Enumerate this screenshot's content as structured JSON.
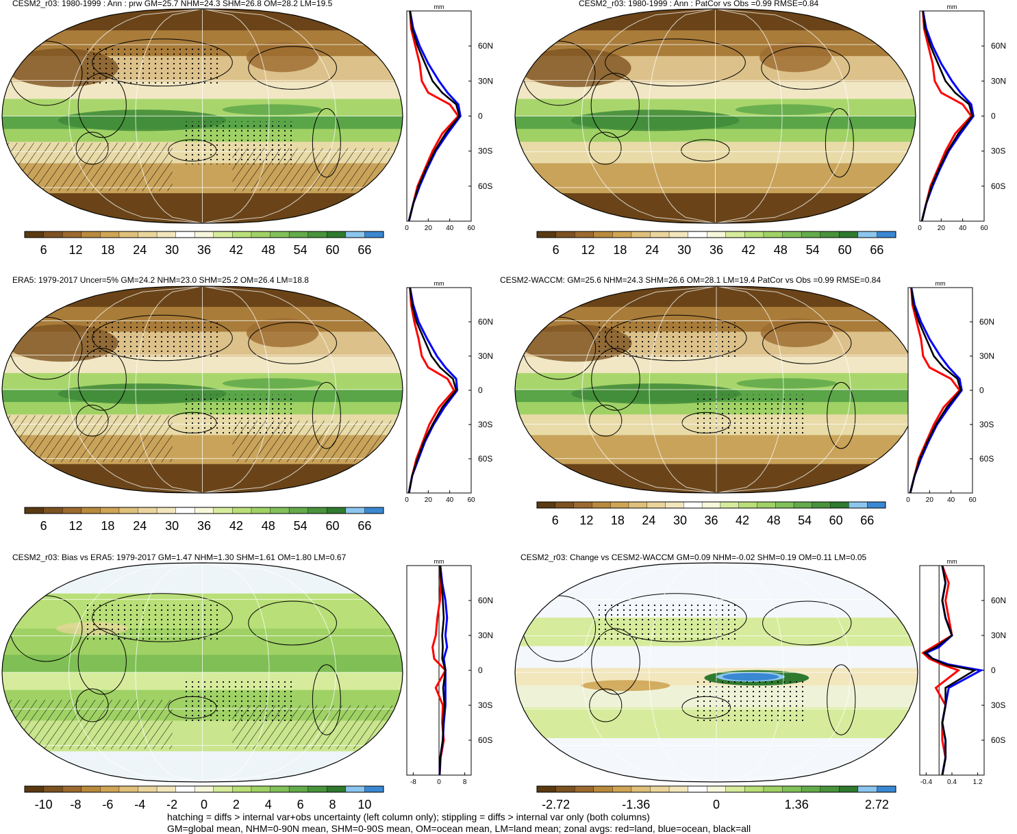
{
  "panels": [
    {
      "title": "CESM2_r03: 1980-1999 : Ann : prw GM=25.7 NHM=24.3 SHM=26.8 OM=28.2 LM=19.5",
      "zonal_unit": "mm",
      "map_style": "abs",
      "marks": [
        "stipple",
        "hatch"
      ]
    },
    {
      "title": "CESM2_r03: 1980-1999 : Ann : PatCor vs Obs =0.99 RMSE=0.84",
      "zonal_unit": "mm",
      "map_style": "abs",
      "marks": []
    },
    {
      "title": "ERA5: 1979-2017 Uncer=5% GM=24.2 NHM=23.0 SHM=25.2 OM=26.4 LM=18.8",
      "zonal_unit": "mm",
      "map_style": "abs",
      "marks": [
        "stipple",
        "hatch"
      ]
    },
    {
      "title": "CESM2-WACCM: GM=25.6 NHM=24.3 SHM=26.6 OM=28.1 LM=19.4 PatCor vs Obs =0.99 RMSE=0.84",
      "zonal_unit": "mm",
      "map_style": "abs",
      "marks": [
        "stipple"
      ]
    },
    {
      "title": "CESM2_r03: Bias vs ERA5: 1979-2017 GM=1.47 NHM=1.30 SHM=1.61 OM=1.80 LM=0.67",
      "zonal_unit": "mm",
      "map_style": "bias",
      "marks": [
        "stipple",
        "hatch"
      ]
    },
    {
      "title": "CESM2_r03: Change vs CESM2-WACCM GM=0.09 NHM=-0.02 SHM=0.19 OM=0.11 LM=0.05",
      "zonal_unit": "mm",
      "map_style": "change",
      "marks": [
        "stipple"
      ]
    }
  ],
  "colorbars": [
    {
      "colors": [
        "#5a3a12",
        "#7d5221",
        "#9c6a30",
        "#b98a3d",
        "#cfa555",
        "#dfc07a",
        "#ead59c",
        "#f2e6bd",
        "#ffffff",
        "#f7f7dc",
        "#d6ec9c",
        "#b9df78",
        "#9fd165",
        "#82c15a",
        "#64ab4b",
        "#49933c",
        "#2f7a2f",
        "#8cc6ee",
        "#3a88d2"
      ],
      "labels": [
        "6",
        "12",
        "18",
        "24",
        "30",
        "36",
        "42",
        "48",
        "54",
        "60",
        "66"
      ]
    },
    {
      "colors": [
        "#5a3a12",
        "#7d5221",
        "#9c6a30",
        "#b98a3d",
        "#cfa555",
        "#dfc07a",
        "#ead59c",
        "#f2e6bd",
        "#ffffff",
        "#f7f7dc",
        "#d6ec9c",
        "#b9df78",
        "#9fd165",
        "#82c15a",
        "#64ab4b",
        "#49933c",
        "#2f7a2f",
        "#8cc6ee",
        "#3a88d2"
      ],
      "labels": [
        "6",
        "12",
        "18",
        "24",
        "30",
        "36",
        "42",
        "48",
        "54",
        "60",
        "66"
      ]
    },
    {
      "colors": [
        "#5a3a12",
        "#7d5221",
        "#9c6a30",
        "#b98a3d",
        "#cfa555",
        "#dfc07a",
        "#ead59c",
        "#f2e6bd",
        "#ffffff",
        "#f7f7dc",
        "#d6ec9c",
        "#b9df78",
        "#9fd165",
        "#82c15a",
        "#64ab4b",
        "#49933c",
        "#2f7a2f",
        "#8cc6ee",
        "#3a88d2"
      ],
      "labels": [
        "6",
        "12",
        "18",
        "24",
        "30",
        "36",
        "42",
        "48",
        "54",
        "60",
        "66"
      ]
    },
    {
      "colors": [
        "#5a3a12",
        "#7d5221",
        "#9c6a30",
        "#b98a3d",
        "#cfa555",
        "#dfc07a",
        "#ead59c",
        "#f2e6bd",
        "#ffffff",
        "#f7f7dc",
        "#d6ec9c",
        "#b9df78",
        "#9fd165",
        "#82c15a",
        "#64ab4b",
        "#49933c",
        "#2f7a2f",
        "#8cc6ee",
        "#3a88d2"
      ],
      "labels": [
        "6",
        "12",
        "18",
        "24",
        "30",
        "36",
        "42",
        "48",
        "54",
        "60",
        "66"
      ]
    },
    {
      "colors": [
        "#5a3a12",
        "#7d5221",
        "#9c6a30",
        "#b98a3d",
        "#cfa555",
        "#dfc07a",
        "#ead59c",
        "#f2e6bd",
        "#ffffff",
        "#f7f7dc",
        "#d6ec9c",
        "#b9df78",
        "#9fd165",
        "#82c15a",
        "#64ab4b",
        "#49933c",
        "#2f7a2f",
        "#8cc6ee",
        "#3a88d2"
      ],
      "labels": [
        "-10",
        "-8",
        "-6",
        "-4",
        "-2",
        "0",
        "2",
        "4",
        "6",
        "8",
        "10"
      ]
    },
    {
      "colors": [
        "#5a3a12",
        "#7d5221",
        "#9c6a30",
        "#b98a3d",
        "#cfa555",
        "#dfc07a",
        "#ead59c",
        "#f2e6bd",
        "#ffffff",
        "#f7f7dc",
        "#d6ec9c",
        "#b9df78",
        "#9fd165",
        "#82c15a",
        "#64ab4b",
        "#49933c",
        "#2f7a2f",
        "#8cc6ee",
        "#3a88d2"
      ],
      "labels": [
        "-2.72",
        "-1.36",
        "0",
        "1.36",
        "2.72"
      ]
    }
  ],
  "chart_data": [
    {
      "type": "line",
      "panel": "CESM2_r03 1980-1999 prw zonal average",
      "xlabel": "mm",
      "ylabel": "",
      "xlim": [
        0,
        60
      ],
      "x_ticks": [
        "0",
        "20",
        "40",
        "60"
      ],
      "ylim": [
        -90,
        90
      ],
      "y_ticks": [
        "60N",
        "30N",
        "0",
        "30S",
        "60S"
      ],
      "y_tick_values": [
        60,
        30,
        0,
        -30,
        -60
      ],
      "lat": [
        -90,
        -75,
        -60,
        -45,
        -30,
        -15,
        0,
        10,
        20,
        30,
        45,
        60,
        75,
        90
      ],
      "series": [
        {
          "color": "#ff0000",
          "values": [
            2,
            6,
            10,
            17,
            24,
            33,
            48,
            40,
            20,
            14,
            12,
            8,
            4,
            3
          ]
        },
        {
          "color": "#0000ff",
          "values": [
            2,
            6,
            12,
            19,
            27,
            38,
            50,
            48,
            38,
            30,
            20,
            12,
            6,
            3
          ]
        },
        {
          "color": "#000000",
          "values": [
            2,
            6,
            11,
            18,
            26,
            36,
            49,
            46,
            33,
            24,
            17,
            10,
            5,
            3
          ]
        }
      ]
    },
    {
      "type": "line",
      "panel": "CESM2_r03 1980-1999 PatCor zonal average",
      "xlabel": "mm",
      "ylabel": "",
      "xlim": [
        0,
        60
      ],
      "x_ticks": [
        "0",
        "20",
        "40",
        "60"
      ],
      "ylim": [
        -90,
        90
      ],
      "y_ticks": [
        "60N",
        "30N",
        "0",
        "30S",
        "60S"
      ],
      "y_tick_values": [
        60,
        30,
        0,
        -30,
        -60
      ],
      "lat": [
        -90,
        -75,
        -60,
        -45,
        -30,
        -15,
        0,
        10,
        20,
        30,
        45,
        60,
        75,
        90
      ],
      "series": [
        {
          "color": "#ff0000",
          "values": [
            2,
            6,
            10,
            17,
            24,
            33,
            48,
            40,
            20,
            14,
            12,
            8,
            4,
            3
          ]
        },
        {
          "color": "#0000ff",
          "values": [
            2,
            6,
            12,
            19,
            27,
            38,
            50,
            48,
            38,
            30,
            20,
            12,
            6,
            3
          ]
        },
        {
          "color": "#000000",
          "values": [
            2,
            6,
            11,
            18,
            26,
            36,
            49,
            46,
            33,
            24,
            17,
            10,
            5,
            3
          ]
        }
      ]
    },
    {
      "type": "line",
      "panel": "ERA5 1979-2017 zonal average",
      "xlabel": "mm",
      "ylabel": "",
      "xlim": [
        0,
        60
      ],
      "x_ticks": [
        "0",
        "20",
        "40",
        "60"
      ],
      "ylim": [
        -90,
        90
      ],
      "y_ticks": [
        "60N",
        "30N",
        "0",
        "30S",
        "60S"
      ],
      "y_tick_values": [
        60,
        30,
        0,
        -30,
        -60
      ],
      "lat": [
        -90,
        -75,
        -60,
        -45,
        -30,
        -15,
        0,
        10,
        20,
        30,
        45,
        60,
        75,
        90
      ],
      "series": [
        {
          "color": "#ff0000",
          "values": [
            2,
            5,
            9,
            15,
            21,
            30,
            44,
            38,
            20,
            14,
            11,
            7,
            4,
            3
          ]
        },
        {
          "color": "#0000ff",
          "values": [
            2,
            5,
            11,
            17,
            25,
            35,
            47,
            46,
            36,
            28,
            19,
            11,
            6,
            3
          ]
        },
        {
          "color": "#000000",
          "values": [
            2,
            5,
            10,
            16,
            24,
            33,
            46,
            43,
            31,
            23,
            16,
            9,
            5,
            3
          ]
        }
      ]
    },
    {
      "type": "line",
      "panel": "CESM2-WACCM zonal average",
      "xlabel": "mm",
      "ylabel": "",
      "xlim": [
        0,
        60
      ],
      "x_ticks": [
        "0",
        "20",
        "40",
        "60"
      ],
      "ylim": [
        -90,
        90
      ],
      "y_ticks": [
        "60N",
        "30N",
        "0",
        "30S",
        "60S"
      ],
      "y_tick_values": [
        60,
        30,
        0,
        -30,
        -60
      ],
      "lat": [
        -90,
        -75,
        -60,
        -45,
        -30,
        -15,
        0,
        10,
        20,
        30,
        45,
        60,
        75,
        90
      ],
      "series": [
        {
          "color": "#ff0000",
          "values": [
            2,
            6,
            10,
            17,
            24,
            33,
            48,
            40,
            20,
            14,
            12,
            8,
            4,
            3
          ]
        },
        {
          "color": "#0000ff",
          "values": [
            2,
            6,
            12,
            19,
            27,
            38,
            50,
            48,
            38,
            30,
            20,
            12,
            6,
            3
          ]
        },
        {
          "color": "#000000",
          "values": [
            2,
            6,
            11,
            18,
            26,
            36,
            49,
            46,
            33,
            24,
            17,
            10,
            5,
            3
          ]
        }
      ]
    },
    {
      "type": "line",
      "panel": "CESM2_r03 Bias vs ERA5 zonal average",
      "xlabel": "mm",
      "ylabel": "",
      "xlim": [
        -10,
        10
      ],
      "x_ticks": [
        "-8",
        "0",
        "8"
      ],
      "x_tick_values": [
        -8,
        0,
        8
      ],
      "ylim": [
        -90,
        90
      ],
      "y_ticks": [
        "60N",
        "30N",
        "0",
        "30S",
        "60S"
      ],
      "y_tick_values": [
        60,
        30,
        0,
        -30,
        -60
      ],
      "lat": [
        -90,
        -75,
        -60,
        -45,
        -30,
        -15,
        0,
        10,
        20,
        30,
        45,
        60,
        75,
        90
      ],
      "series": [
        {
          "color": "#ff0000",
          "values": [
            0.2,
            0.5,
            1.5,
            1,
            1.2,
            -1,
            2,
            -1.5,
            -2,
            -1,
            -0.5,
            0.3,
            0.5,
            0.3
          ]
        },
        {
          "color": "#0000ff",
          "values": [
            0.2,
            0.4,
            1.2,
            1.5,
            2,
            2,
            2,
            1.5,
            2.5,
            2,
            2.5,
            2,
            1,
            0.4
          ]
        },
        {
          "color": "#000000",
          "values": [
            0.2,
            0.4,
            1.2,
            1.3,
            1.7,
            1.3,
            2,
            1,
            1.2,
            1,
            1.5,
            1.2,
            0.8,
            0.3
          ]
        }
      ]
    },
    {
      "type": "line",
      "panel": "CESM2_r03 Change vs CESM2-WACCM zonal average",
      "xlabel": "mm",
      "ylabel": "",
      "xlim": [
        -0.6,
        1.4
      ],
      "x_ticks": [
        "-0.4",
        "0.4",
        "1.2"
      ],
      "x_tick_values": [
        -0.4,
        0.4,
        1.2
      ],
      "ylim": [
        -90,
        90
      ],
      "y_ticks": [
        "60N",
        "30N",
        "0",
        "30S",
        "60S"
      ],
      "y_tick_values": [
        60,
        30,
        0,
        -30,
        -60
      ],
      "lat": [
        -90,
        -75,
        -60,
        -45,
        -30,
        -15,
        0,
        5,
        10,
        15,
        20,
        30,
        45,
        60,
        75,
        90
      ],
      "series": [
        {
          "color": "#ff0000",
          "values": [
            0.1,
            0.2,
            0.1,
            0.1,
            0.2,
            -0.1,
            0.6,
            0.1,
            -0.3,
            -0.5,
            -0.2,
            0.4,
            0.3,
            0.2,
            0.3,
            0.1
          ]
        },
        {
          "color": "#0000ff",
          "values": [
            0.1,
            0.2,
            0.2,
            0.1,
            0.2,
            0.3,
            1.3,
            0.3,
            -0.2,
            -0.4,
            0,
            0.4,
            0.2,
            0.1,
            0.2,
            0.1
          ]
        },
        {
          "color": "#000000",
          "values": [
            0.1,
            0.2,
            0.2,
            0.1,
            0.2,
            0.2,
            1.1,
            0.2,
            -0.2,
            -0.45,
            -0.1,
            0.4,
            0.2,
            0.1,
            0.2,
            0.1
          ]
        }
      ]
    }
  ],
  "footer": {
    "line1": "hatching = diffs > internal var+obs uncertainty (left column only); stippling = diffs > internal var only (both columns)",
    "line2": "GM=global mean, NHM=0-90N mean, SHM=0-90S mean, OM=ocean mean, LM=land mean; zonal avgs: red=land, blue=ocean, black=all"
  }
}
